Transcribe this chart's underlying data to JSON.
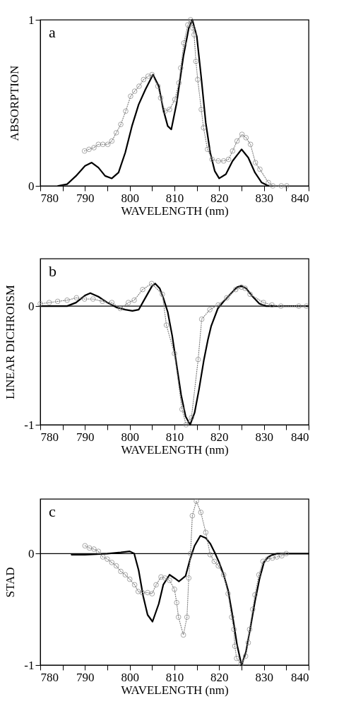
{
  "chart_data": [
    {
      "type": "line",
      "xlabel": "WAVELENGTH (nm)",
      "ylabel": "ABSORPTION",
      "annotations": [
        "a"
      ],
      "xlim": [
        780,
        840
      ],
      "xticks": [
        780,
        {
          "value": 785,
          "label": null
        },
        790,
        {
          "value": 795,
          "label": null
        },
        800,
        {
          "value": 805,
          "label": null
        },
        810,
        {
          "value": 815,
          "label": null
        },
        820,
        {
          "value": 825,
          "label": null
        },
        830,
        {
          "value": 835,
          "label": null
        },
        840
      ],
      "ylim": [
        0,
        1
      ],
      "yticks": [
        0,
        1
      ],
      "grid": false,
      "legend": false,
      "series": [
        {
          "type": "line",
          "color": "#000000",
          "line_style": "solid",
          "marker": "none",
          "x": [
            784,
            786,
            788,
            790,
            791.5,
            793,
            794.5,
            796,
            797.5,
            799,
            800.5,
            802,
            803.5,
            805.2,
            806.5,
            807.5,
            808.5,
            809.3,
            810.5,
            812,
            813.2,
            814,
            815,
            816,
            817,
            818,
            819,
            820,
            821.5,
            823,
            825,
            826.5,
            828,
            829.5,
            831
          ],
          "values": [
            0,
            0.01,
            0.06,
            0.12,
            0.14,
            0.11,
            0.06,
            0.045,
            0.08,
            0.2,
            0.36,
            0.49,
            0.58,
            0.67,
            0.6,
            0.46,
            0.36,
            0.34,
            0.5,
            0.78,
            0.95,
            1.0,
            0.9,
            0.65,
            0.38,
            0.2,
            0.09,
            0.045,
            0.07,
            0.15,
            0.22,
            0.17,
            0.08,
            0.02,
            0
          ]
        },
        {
          "type": "line",
          "color": "#808080",
          "line_style": "dotted",
          "marker": "circle",
          "x": [
            789.9,
            790.9,
            792,
            793,
            794,
            795.1,
            796,
            797,
            798,
            799.1,
            800.2,
            801.1,
            802.1,
            803.1,
            804.1,
            805,
            806.3,
            806.9,
            807.9,
            808.9,
            810.1,
            811,
            811.4,
            812.1,
            813,
            813.6,
            814.1,
            814.4,
            814.8,
            815.2,
            816,
            816.5,
            817.4,
            818.4,
            819.8,
            821,
            822.1,
            823,
            824,
            825.1,
            826,
            827,
            828.1,
            829.1,
            831,
            832,
            833.9,
            835.1
          ],
          "values": [
            0.21,
            0.22,
            0.23,
            0.25,
            0.25,
            0.25,
            0.27,
            0.32,
            0.37,
            0.45,
            0.54,
            0.57,
            0.6,
            0.64,
            0.66,
            0.67,
            0.6,
            0.53,
            0.45,
            0.46,
            0.52,
            0.62,
            0.71,
            0.86,
            0.97,
            1.0,
            0.95,
            0.91,
            0.75,
            0.64,
            0.46,
            0.35,
            0.22,
            0.16,
            0.15,
            0.15,
            0.16,
            0.21,
            0.27,
            0.31,
            0.29,
            0.25,
            0.14,
            0.1,
            0.02,
            0.0,
            0.0,
            0.0
          ]
        }
      ]
    },
    {
      "type": "line",
      "xlabel": "WAVELENGTH (nm)",
      "ylabel": "LINEAR DICHROISM",
      "annotations": [
        "b"
      ],
      "xlim": [
        780,
        840
      ],
      "xticks": [
        780,
        {
          "value": 785,
          "label": null
        },
        790,
        {
          "value": 795,
          "label": null
        },
        800,
        {
          "value": 805,
          "label": null
        },
        810,
        {
          "value": 815,
          "label": null
        },
        820,
        {
          "value": 825,
          "label": null
        },
        830,
        {
          "value": 835,
          "label": null
        },
        840
      ],
      "ylim": [
        -1,
        0.4
      ],
      "yticks": [
        -1,
        0
      ],
      "grid": false,
      "legend": false,
      "ref_lines": [
        {
          "axis": "y",
          "value": 0,
          "color": "#000000"
        }
      ],
      "series": [
        {
          "type": "line",
          "color": "#000000",
          "line_style": "solid",
          "marker": "none",
          "x": [
            780,
            786,
            788,
            790,
            791.2,
            793,
            795,
            797,
            799,
            800.6,
            802,
            803.5,
            805,
            805.7,
            806.7,
            807.5,
            808.5,
            809.5,
            810.5,
            811.5,
            812.5,
            813.5,
            814.5,
            815.5,
            816.6,
            817.5,
            818.2,
            819.7,
            821,
            822.5,
            824,
            824.9,
            826,
            827.5,
            829,
            830.5,
            840
          ],
          "values": [
            0,
            0,
            0.03,
            0.09,
            0.11,
            0.08,
            0.03,
            -0.01,
            -0.03,
            -0.04,
            -0.03,
            0.07,
            0.17,
            0.19,
            0.15,
            0.07,
            -0.05,
            -0.25,
            -0.5,
            -0.75,
            -0.93,
            -1.0,
            -0.9,
            -0.7,
            -0.45,
            -0.28,
            -0.17,
            -0.02,
            0.04,
            0.1,
            0.16,
            0.17,
            0.15,
            0.08,
            0.02,
            0,
            0
          ]
        },
        {
          "type": "line",
          "color": "#808080",
          "line_style": "dotted",
          "marker": "circle",
          "x": [
            780,
            782,
            783.9,
            786,
            788.1,
            789.9,
            791.8,
            793.9,
            796,
            797.9,
            799.7,
            801,
            802.9,
            804.9,
            807.3,
            808.2,
            810,
            811.7,
            812.6,
            813.8,
            815.3,
            816.1,
            817.9,
            819.8,
            821.7,
            823.7,
            825,
            825.8,
            826.9,
            829.9,
            831.8,
            833.8,
            837.8,
            839.5
          ],
          "values": [
            0.02,
            0.03,
            0.04,
            0.05,
            0.07,
            0.06,
            0.06,
            0.04,
            0.03,
            -0.02,
            0.03,
            0.05,
            0.14,
            0.19,
            0.1,
            -0.16,
            -0.4,
            -0.87,
            -1.0,
            -0.94,
            -0.45,
            -0.11,
            -0.03,
            0.01,
            0.07,
            0.14,
            0.16,
            0.15,
            0.1,
            0.03,
            0.01,
            0,
            0,
            0
          ]
        }
      ]
    },
    {
      "type": "line",
      "xlabel": "WAVELENGTH (nm)",
      "ylabel": "STAD",
      "annotations": [
        "c"
      ],
      "xlim": [
        780,
        840
      ],
      "xticks": [
        780,
        {
          "value": 785,
          "label": null
        },
        790,
        {
          "value": 795,
          "label": null
        },
        800,
        {
          "value": 805,
          "label": null
        },
        810,
        {
          "value": 815,
          "label": null
        },
        820,
        {
          "value": 825,
          "label": null
        },
        830,
        {
          "value": 835,
          "label": null
        },
        840
      ],
      "ylim": [
        -1,
        0.49
      ],
      "yticks": [
        -1,
        0
      ],
      "grid": false,
      "legend": false,
      "ref_lines": [
        {
          "axis": "y",
          "value": 0,
          "color": "#000000"
        }
      ],
      "series": [
        {
          "type": "line",
          "color": "#000000",
          "line_style": "solid",
          "marker": "none",
          "x": [
            787,
            790,
            795,
            798,
            800,
            801,
            802,
            803,
            804,
            805.1,
            806.5,
            807.5,
            808.9,
            810,
            811,
            812.5,
            813.5,
            814.5,
            815.8,
            817,
            818,
            819,
            820,
            821,
            822,
            823,
            824,
            825,
            826,
            827,
            828,
            829,
            830,
            831,
            832,
            833,
            840
          ],
          "values": [
            -0.01,
            -0.01,
            0,
            0.01,
            0.02,
            0,
            -0.15,
            -0.38,
            -0.55,
            -0.61,
            -0.45,
            -0.28,
            -0.19,
            -0.22,
            -0.25,
            -0.2,
            -0.05,
            0.07,
            0.16,
            0.14,
            0.09,
            0.01,
            -0.08,
            -0.19,
            -0.33,
            -0.56,
            -0.82,
            -1.0,
            -0.88,
            -0.66,
            -0.43,
            -0.23,
            -0.08,
            -0.03,
            -0.01,
            0,
            0
          ]
        },
        {
          "type": "line",
          "color": "#808080",
          "line_style": "dotted",
          "marker": "circle",
          "x": [
            790,
            791,
            792,
            793,
            794,
            795,
            796,
            797,
            798,
            799,
            800,
            801.1,
            801.9,
            802.8,
            804,
            805,
            805.9,
            807,
            807.9,
            808.9,
            810,
            810.5,
            810.9,
            812,
            812.8,
            813.2,
            813.6,
            814,
            814.9,
            815.9,
            817,
            818,
            818.9,
            819.8,
            821,
            822,
            822.8,
            823.3,
            823.5,
            823.9,
            824.9,
            825.9,
            826.5,
            826.8,
            827.5,
            828,
            828.9,
            829.8,
            830.8,
            831.9,
            832.9,
            834,
            835
          ],
          "values": [
            0.07,
            0.05,
            0.04,
            0.02,
            -0.03,
            -0.05,
            -0.08,
            -0.11,
            -0.16,
            -0.19,
            -0.23,
            -0.28,
            -0.34,
            -0.35,
            -0.35,
            -0.36,
            -0.28,
            -0.21,
            -0.22,
            -0.24,
            -0.32,
            -0.44,
            -0.57,
            -0.73,
            -0.57,
            -0.22,
            0,
            0.34,
            0.47,
            0.37,
            0.19,
            -0.01,
            -0.07,
            -0.11,
            -0.19,
            -0.36,
            -0.57,
            -0.68,
            -0.83,
            -0.94,
            -0.99,
            -0.92,
            -0.8,
            -0.68,
            -0.5,
            -0.37,
            -0.19,
            -0.07,
            -0.05,
            -0.04,
            -0.03,
            -0.02,
            0
          ]
        }
      ]
    }
  ]
}
